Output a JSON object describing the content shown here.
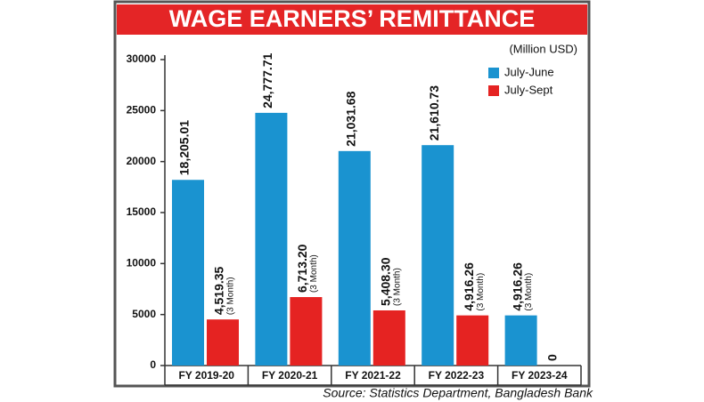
{
  "chart_data": {
    "type": "bar",
    "title": "WAGE EARNERS’ REMITTANCE",
    "unit_label": "(Million USD)",
    "source": "Source: Statistics Department, Bangladesh Bank",
    "categories": [
      "FY 2019-20",
      "FY 2020-21",
      "FY 2021-22",
      "FY 2022-23",
      "FY 2023-24"
    ],
    "series": [
      {
        "name": "July-June",
        "color": "#1a93d0",
        "values": [
          18205.01,
          24777.71,
          21031.68,
          21610.73,
          4916.26
        ],
        "value_labels": [
          "18,205.01",
          "24,777.71",
          "21,031.68",
          "21,610.73",
          "4,916.26"
        ],
        "value_notes": [
          null,
          null,
          null,
          null,
          "(3 Month)"
        ]
      },
      {
        "name": "July-Sept",
        "color": "#e52322",
        "values": [
          4519.35,
          6713.2,
          5408.3,
          4916.26,
          0
        ],
        "value_labels": [
          "4,519.35",
          "6,713.20",
          "5,408.30",
          "4,916.26",
          "0"
        ],
        "value_notes": [
          "(3 Month)",
          "(3 Month)",
          "(3 Month)",
          "(3 Month)",
          null
        ]
      }
    ],
    "ylim": [
      0,
      30000
    ],
    "yticks": [
      0,
      5000,
      10000,
      15000,
      20000,
      25000,
      30000
    ],
    "grid": false,
    "legend": "top-right"
  }
}
